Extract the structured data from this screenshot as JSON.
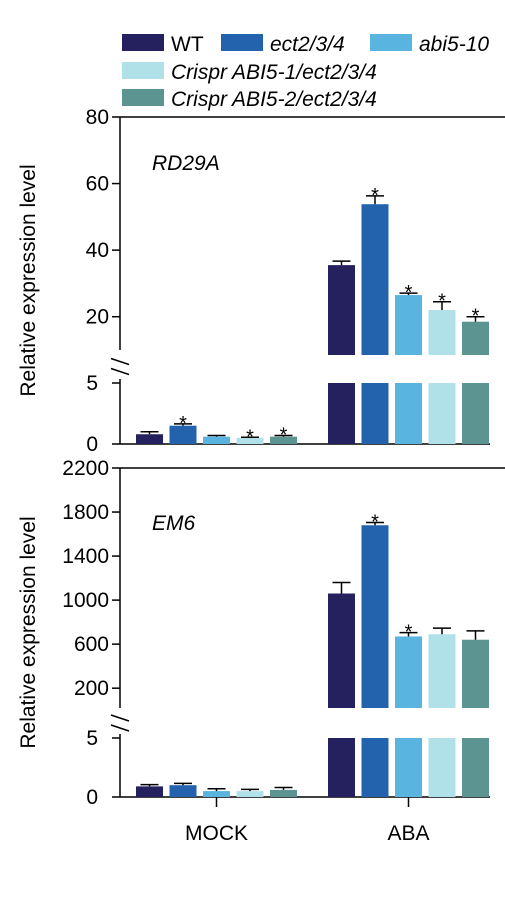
{
  "chart_data": [
    {
      "type": "bar",
      "gene": "RD29A",
      "ylabel": "Relative expression level",
      "categories": [
        "MOCK",
        "ABA"
      ],
      "axis_break": true,
      "lower_ticks": [
        "0",
        "5"
      ],
      "upper_ticks": [
        "20",
        "40",
        "60",
        "80"
      ],
      "ylim_lower": [
        0,
        5
      ],
      "ylim_upper": [
        10,
        80
      ],
      "series": [
        {
          "name": "WT",
          "values": [
            0.8,
            35.5
          ],
          "errors": [
            0.2,
            1.2
          ],
          "significant": [
            false,
            false
          ]
        },
        {
          "name": "ect2/3/4",
          "values": [
            1.5,
            53.8
          ],
          "errors": [
            0.15,
            2.5
          ],
          "significant": [
            true,
            true
          ]
        },
        {
          "name": "abi5-10",
          "values": [
            0.6,
            26.5
          ],
          "errors": [
            0.1,
            0.6
          ],
          "significant": [
            false,
            true
          ]
        },
        {
          "name": "Crispr ABI5-1/ect2/3/4",
          "values": [
            0.5,
            22.0
          ],
          "errors": [
            0.05,
            2.5
          ],
          "significant": [
            true,
            true
          ]
        },
        {
          "name": "Crispr ABI5-2/ect2/3/4",
          "values": [
            0.6,
            18.5
          ],
          "errors": [
            0.1,
            1.5
          ],
          "significant": [
            true,
            true
          ]
        }
      ]
    },
    {
      "type": "bar",
      "gene": "EM6",
      "ylabel": "Relative expression level",
      "categories": [
        "MOCK",
        "ABA"
      ],
      "axis_break": true,
      "lower_ticks": [
        "0",
        "5"
      ],
      "upper_ticks": [
        "200",
        "600",
        "1000",
        "1400",
        "1800",
        "2200"
      ],
      "ylim_lower": [
        0,
        5
      ],
      "ylim_upper": [
        20,
        2200
      ],
      "series": [
        {
          "name": "WT",
          "values": [
            0.9,
            1060
          ],
          "errors": [
            0.15,
            100
          ],
          "significant": [
            false,
            false
          ]
        },
        {
          "name": "ect2/3/4",
          "values": [
            1.0,
            1680
          ],
          "errors": [
            0.15,
            25
          ],
          "significant": [
            false,
            true
          ]
        },
        {
          "name": "abi5-10",
          "values": [
            0.5,
            670
          ],
          "errors": [
            0.2,
            35
          ],
          "significant": [
            false,
            true
          ]
        },
        {
          "name": "Crispr ABI5-1/ect2/3/4",
          "values": [
            0.5,
            690
          ],
          "errors": [
            0.15,
            55
          ],
          "significant": [
            false,
            false
          ]
        },
        {
          "name": "Crispr ABI5-2/ect2/3/4",
          "values": [
            0.6,
            640
          ],
          "errors": [
            0.2,
            80
          ],
          "significant": [
            false,
            false
          ]
        }
      ]
    }
  ],
  "legend": [
    {
      "label": "WT",
      "italic": false
    },
    {
      "label": "ect2/3/4",
      "italic": true
    },
    {
      "label": "abi5-10",
      "italic": true
    },
    {
      "label": "Crispr ABI5-1/ect2/3/4",
      "italic": true
    },
    {
      "label": "Crispr ABI5-2/ect2/3/4",
      "italic": true
    }
  ],
  "colors": [
    "#25215e",
    "#2363ae",
    "#5ab4e0",
    "#b0e0e8",
    "#5b9490"
  ],
  "significance_marker": "*"
}
